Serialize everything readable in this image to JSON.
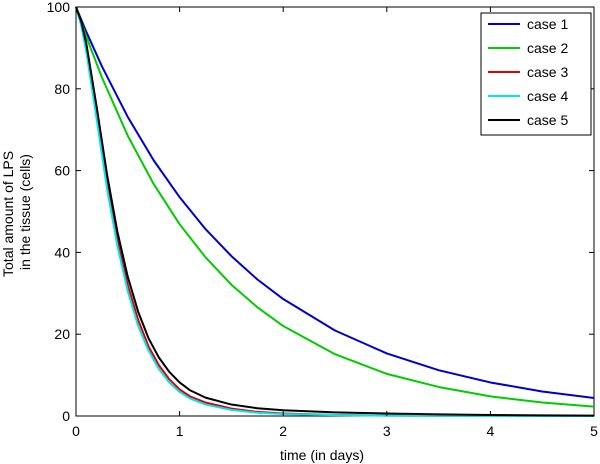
{
  "chart_data": {
    "type": "line",
    "xlabel": "time (in days)",
    "ylabel_lines": [
      "Total amount of LPS",
      "in the tissue (cells)"
    ],
    "xlim": [
      0,
      5
    ],
    "ylim": [
      0,
      100
    ],
    "xticks": [
      0,
      1,
      2,
      3,
      4,
      5
    ],
    "yticks": [
      0,
      20,
      40,
      60,
      80,
      100
    ],
    "grid": false,
    "legend_position": "top-right",
    "series": [
      {
        "name": "case 1",
        "color": "#0000cc",
        "x": [
          0,
          0.1,
          0.25,
          0.5,
          0.75,
          1,
          1.25,
          1.5,
          1.75,
          2,
          2.5,
          3,
          3.5,
          4,
          4.5,
          5
        ],
        "y": [
          100,
          93.9,
          85.5,
          73.1,
          62.5,
          53.5,
          45.7,
          39.1,
          33.4,
          28.6,
          20.9,
          15.3,
          11.2,
          8.2,
          6.0,
          4.4
        ]
      },
      {
        "name": "case 2",
        "color": "#00cc00",
        "x": [
          0,
          0.1,
          0.25,
          0.5,
          0.75,
          1,
          1.25,
          1.5,
          1.75,
          2,
          2.5,
          3,
          3.5,
          4,
          4.5,
          5
        ],
        "y": [
          100,
          92.7,
          82.8,
          68.5,
          56.7,
          46.9,
          38.8,
          32.1,
          26.6,
          22.0,
          15.1,
          10.3,
          7.1,
          4.8,
          3.3,
          2.3
        ]
      },
      {
        "name": "case 3",
        "color": "#dd0000",
        "x": [
          0,
          0.05,
          0.1,
          0.2,
          0.3,
          0.4,
          0.5,
          0.6,
          0.7,
          0.8,
          0.9,
          1,
          1.1,
          1.25,
          1.5,
          1.75,
          2,
          2.5,
          3,
          3.5,
          4,
          4.5,
          5
        ],
        "y": [
          100,
          96,
          90,
          74,
          57,
          43,
          32,
          23.5,
          17,
          12.4,
          9,
          6.5,
          4.8,
          3.3,
          1.8,
          1.0,
          0.6,
          0.25,
          0.1,
          0.05,
          0.02,
          0.01,
          0
        ]
      },
      {
        "name": "case 4",
        "color": "#00e5ee",
        "x": [
          0,
          0.05,
          0.1,
          0.2,
          0.3,
          0.4,
          0.5,
          0.6,
          0.7,
          0.8,
          0.9,
          1,
          1.1,
          1.25,
          1.5,
          1.75,
          2,
          2.5,
          3,
          3.5,
          4,
          4.5,
          5
        ],
        "y": [
          100,
          95.5,
          89,
          72.5,
          55.5,
          41.5,
          30.5,
          22,
          16,
          11.5,
          8.2,
          5.9,
          4.3,
          2.8,
          1.5,
          0.8,
          0.5,
          0.2,
          0.08,
          0.03,
          0.01,
          0,
          0
        ]
      },
      {
        "name": "case 5",
        "color": "#000000",
        "x": [
          0,
          0.05,
          0.1,
          0.2,
          0.3,
          0.4,
          0.5,
          0.6,
          0.7,
          0.8,
          0.9,
          1,
          1.1,
          1.25,
          1.5,
          1.75,
          2,
          2.5,
          3,
          3.5,
          4,
          4.5,
          5
        ],
        "y": [
          100,
          96.5,
          91,
          75.5,
          59,
          45,
          34,
          25.5,
          19,
          14.3,
          10.8,
          8.2,
          6.3,
          4.5,
          2.8,
          1.9,
          1.4,
          0.9,
          0.6,
          0.4,
          0.25,
          0.15,
          0.1
        ]
      }
    ]
  }
}
